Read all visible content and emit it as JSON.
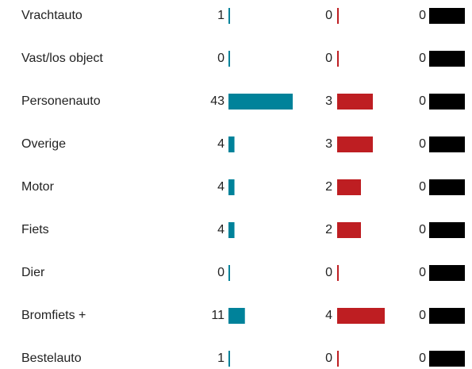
{
  "chart_data": {
    "type": "bar",
    "categories": [
      "Vrachtauto",
      "Vast/los object",
      "Personenauto",
      "Overige",
      "Motor",
      "Fiets",
      "Dier",
      "Bromfiets +",
      "Bestelauto"
    ],
    "series": [
      {
        "color": "#00829a",
        "values": [
          1,
          0,
          43,
          4,
          4,
          4,
          0,
          11,
          1
        ]
      },
      {
        "color": "#be1e22",
        "values": [
          0,
          0,
          3,
          3,
          2,
          2,
          0,
          4,
          0
        ]
      },
      {
        "color": "#000000",
        "values": [
          0,
          0,
          0,
          0,
          0,
          0,
          0,
          0,
          0
        ]
      }
    ]
  }
}
